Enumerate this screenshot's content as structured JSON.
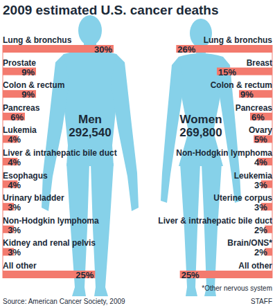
{
  "title": "2009 estimated U.S. cancer deaths",
  "footnote": "*Other nervous system",
  "source": "Source: American Cancer Society, 2009",
  "credit": "STAFF",
  "chart_data": [
    {
      "type": "bar",
      "orientation": "horizontal",
      "title": "Men",
      "total": 292540,
      "categories": [
        "Lung & bronchus",
        "Prostate",
        "Colon & rectum",
        "Pancreas",
        "Lukemia",
        "Liver & intrahepatic bile duct",
        "Esophagus",
        "Urinary bladder",
        "Non-Hodgkin lymphoma",
        "Kidney and renal pelvis",
        "All other"
      ],
      "values": [
        30,
        9,
        9,
        6,
        4,
        4,
        4,
        3,
        3,
        3,
        25
      ],
      "value_labels": [
        "30%",
        "9%",
        "9%",
        "6%",
        "4%",
        "4%",
        "4%",
        "3%",
        "3%",
        "3%",
        "25%"
      ],
      "color": "#f37a6e",
      "xlim": [
        0,
        30
      ],
      "data_labels": true,
      "tick_labels": false
    },
    {
      "type": "bar",
      "orientation": "horizontal",
      "title": "Women",
      "total": 269800,
      "categories": [
        "Lung & bronchus",
        "Breast",
        "Colon & rectum",
        "Pancreas",
        "Ovary",
        "Non-Hodgkin lymphoma",
        "Leukemia",
        "Uterine corpus",
        "Liver & intrahepatic bile duct",
        "Brain/ONS*",
        "All other"
      ],
      "values": [
        26,
        15,
        9,
        6,
        5,
        4,
        3,
        3,
        2,
        2,
        25
      ],
      "value_labels": [
        "26%",
        "15%",
        "9%",
        "6%",
        "5%",
        "4%",
        "3%",
        "3%",
        "2%",
        "2%",
        "25%"
      ],
      "color": "#f37a6e",
      "xlim": [
        0,
        30
      ],
      "data_labels": true,
      "tick_labels": false
    }
  ]
}
